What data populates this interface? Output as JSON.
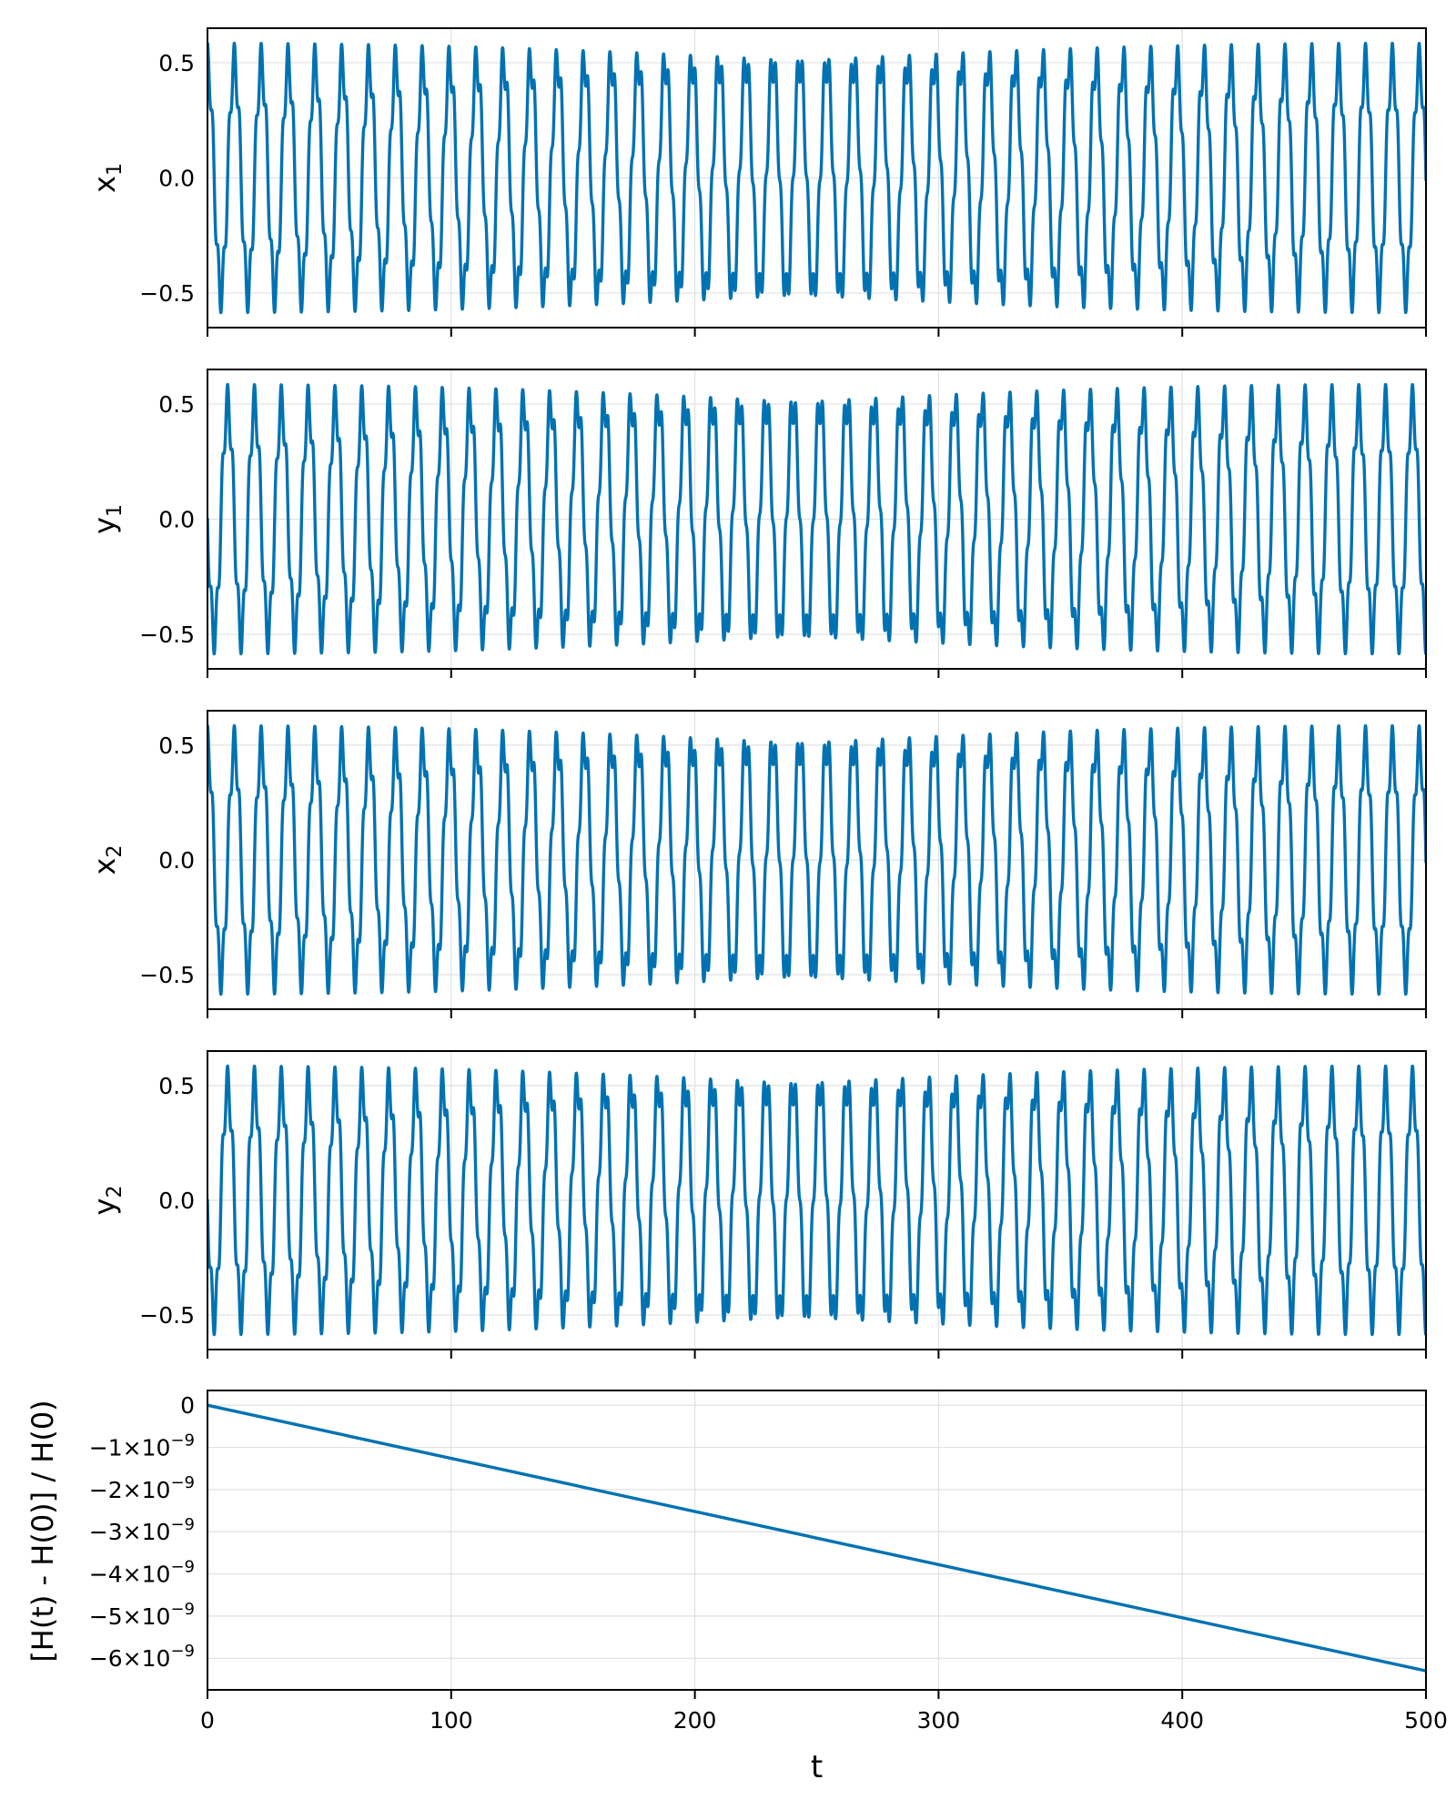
{
  "colors": {
    "series": "#0072b2",
    "axis": "#000000",
    "grid": "#e1e1e1"
  },
  "chart_data": [
    {
      "type": "line",
      "ylabel_base": "x",
      "ylabel_sub": "1",
      "xlim": [
        0,
        500
      ],
      "ylim": [
        -0.65,
        0.65
      ],
      "yticks": [
        0.5,
        0.0,
        -0.5
      ],
      "ytick_labels": [
        "0.5",
        "0.0",
        "−0.5"
      ],
      "series": [
        {
          "values": {
            "amplitude": 0.5,
            "ripple_amplitude": 0.085,
            "period": 11.05,
            "ripple_period": 2.2,
            "phase": 1.5708
          }
        }
      ]
    },
    {
      "type": "line",
      "ylabel_base": "y",
      "ylabel_sub": "1",
      "xlim": [
        0,
        500
      ],
      "ylim": [
        -0.65,
        0.65
      ],
      "yticks": [
        0.5,
        0.0,
        -0.5
      ],
      "ytick_labels": [
        "0.5",
        "0.0",
        "−0.5"
      ],
      "series": [
        {
          "values": {
            "amplitude": 0.5,
            "ripple_amplitude": 0.085,
            "period": 11.05,
            "ripple_period": 2.2,
            "phase": 3.1416
          }
        }
      ]
    },
    {
      "type": "line",
      "ylabel_base": "x",
      "ylabel_sub": "2",
      "xlim": [
        0,
        500
      ],
      "ylim": [
        -0.65,
        0.65
      ],
      "yticks": [
        0.5,
        0.0,
        -0.5
      ],
      "ytick_labels": [
        "0.5",
        "0.0",
        "−0.5"
      ],
      "series": [
        {
          "values": {
            "amplitude": 0.5,
            "ripple_amplitude": 0.085,
            "period": 11.05,
            "ripple_period": 2.2,
            "phase": 1.5708
          }
        }
      ]
    },
    {
      "type": "line",
      "ylabel_base": "y",
      "ylabel_sub": "2",
      "xlim": [
        0,
        500
      ],
      "ylim": [
        -0.65,
        0.65
      ],
      "yticks": [
        0.5,
        0.0,
        -0.5
      ],
      "ytick_labels": [
        "0.5",
        "0.0",
        "−0.5"
      ],
      "series": [
        {
          "values": {
            "amplitude": 0.5,
            "ripple_amplitude": 0.085,
            "period": 11.05,
            "ripple_period": 2.2,
            "phase": 3.1416
          }
        }
      ]
    },
    {
      "type": "line",
      "ylabel": "[H(t) - H(0)] / H(0)",
      "xlabel": "t",
      "xlim": [
        0,
        500
      ],
      "ylim": [
        -6.75e-09,
        3.5e-10
      ],
      "xticks": [
        0,
        100,
        200,
        300,
        400,
        500
      ],
      "xtick_labels": [
        "0",
        "100",
        "200",
        "300",
        "400",
        "500"
      ],
      "yticks": [
        0,
        -1e-09,
        -2e-09,
        -3e-09,
        -4e-09,
        -5e-09,
        -6e-09
      ],
      "ytick_labels": [
        {
          "mantissa": "0",
          "exponent": ""
        },
        {
          "mantissa": "−1×10",
          "exponent": "−9"
        },
        {
          "mantissa": "−2×10",
          "exponent": "−9"
        },
        {
          "mantissa": "−3×10",
          "exponent": "−9"
        },
        {
          "mantissa": "−4×10",
          "exponent": "−9"
        },
        {
          "mantissa": "−5×10",
          "exponent": "−9"
        },
        {
          "mantissa": "−6×10",
          "exponent": "−9"
        }
      ],
      "series": [
        {
          "x": [
            0,
            500
          ],
          "y": [
            0,
            -6.3e-09
          ]
        }
      ]
    }
  ]
}
